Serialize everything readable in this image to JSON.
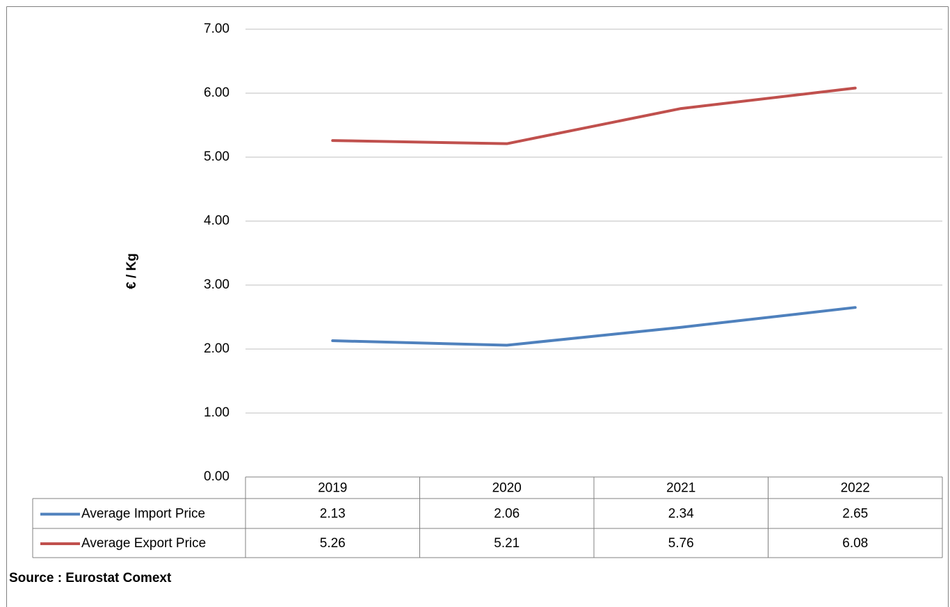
{
  "chart_data": {
    "type": "line",
    "y_label": "€ / Kg",
    "source": "Source : Eurostat Comext",
    "categories": [
      "2019",
      "2020",
      "2021",
      "2022"
    ],
    "series": [
      {
        "name": "Average Import Price",
        "color": "#4f81bd",
        "values": [
          2.13,
          2.06,
          2.34,
          2.65
        ]
      },
      {
        "name": "Average Export Price",
        "color": "#c0504d",
        "values": [
          5.26,
          5.21,
          5.76,
          6.08
        ]
      }
    ],
    "ylim": [
      0,
      7
    ],
    "yticks": [
      {
        "value": 0,
        "label": "0.00"
      },
      {
        "value": 1,
        "label": "1.00"
      },
      {
        "value": 2,
        "label": "2.00"
      },
      {
        "value": 3,
        "label": "3.00"
      },
      {
        "value": 4,
        "label": "4.00"
      },
      {
        "value": 5,
        "label": "5.00"
      },
      {
        "value": 6,
        "label": "6.00"
      },
      {
        "value": 7,
        "label": "7.00"
      }
    ],
    "grid": true
  }
}
